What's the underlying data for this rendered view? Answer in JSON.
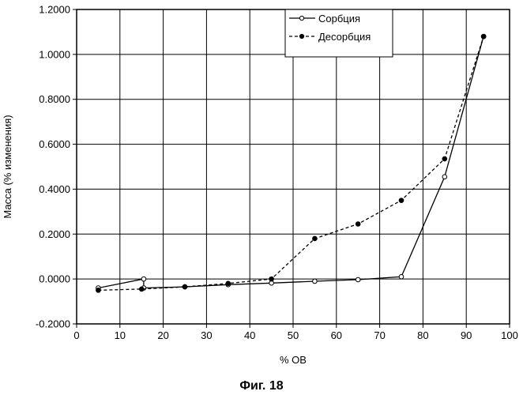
{
  "chart_data": {
    "type": "line",
    "title": "",
    "caption": "Фиг. 18",
    "xlabel": "% ОВ",
    "ylabel": "Масса (% изменения)",
    "xlim": [
      0,
      100
    ],
    "ylim": [
      -0.2,
      1.2
    ],
    "xticks": [
      "0",
      "10",
      "20",
      "30",
      "40",
      "50",
      "60",
      "70",
      "80",
      "90",
      "100"
    ],
    "yticks": [
      "-0.2000",
      "0.0000",
      "0.2000",
      "0.4000",
      "0.6000",
      "0.8000",
      "1.0000",
      "1.2000"
    ],
    "grid": true,
    "legend_position": "top-right",
    "series": [
      {
        "name": "Сорбция",
        "marker": "open-circle",
        "line": "solid",
        "points": [
          [
            5,
            -0.04
          ],
          [
            15.5,
            0.0
          ],
          [
            15.5,
            -0.04
          ],
          [
            25,
            -0.035
          ],
          [
            35,
            -0.025
          ],
          [
            45,
            -0.018
          ],
          [
            55,
            -0.01
          ],
          [
            65,
            -0.003
          ],
          [
            75,
            0.01
          ],
          [
            85,
            0.455
          ],
          [
            94,
            1.08
          ]
        ]
      },
      {
        "name": "Десорбция",
        "marker": "filled-circle",
        "line": "dashed",
        "points": [
          [
            5,
            -0.05
          ],
          [
            15,
            -0.045
          ],
          [
            25,
            -0.035
          ],
          [
            35,
            -0.02
          ],
          [
            45,
            0.0
          ],
          [
            55,
            0.18
          ],
          [
            65,
            0.245
          ],
          [
            75,
            0.35
          ],
          [
            85,
            0.535
          ],
          [
            94,
            1.08
          ]
        ]
      }
    ]
  }
}
